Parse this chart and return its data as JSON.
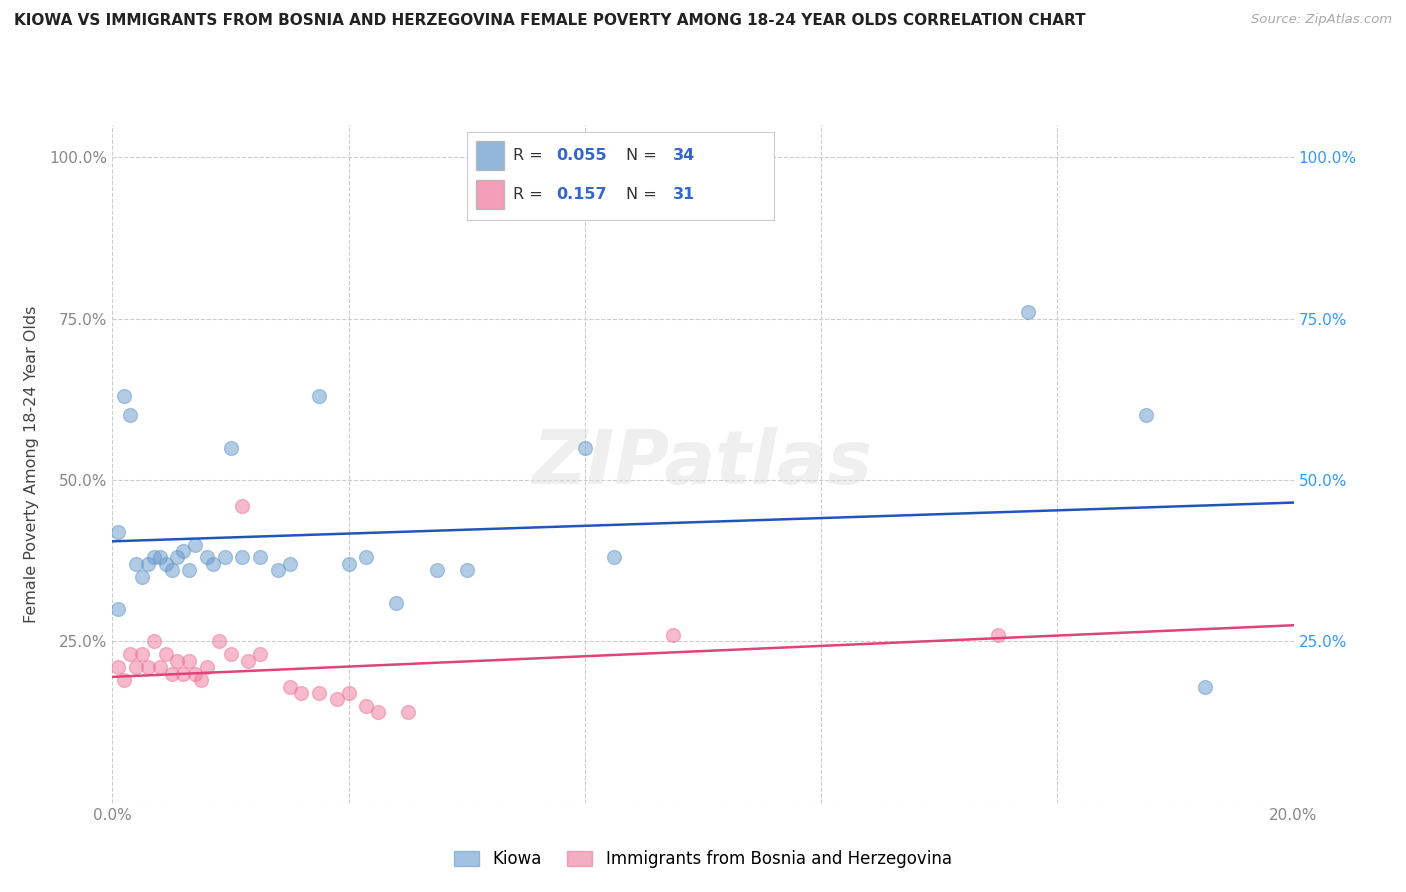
{
  "title": "KIOWA VS IMMIGRANTS FROM BOSNIA AND HERZEGOVINA FEMALE POVERTY AMONG 18-24 YEAR OLDS CORRELATION CHART",
  "source": "Source: ZipAtlas.com",
  "ylabel": "Female Poverty Among 18-24 Year Olds",
  "xlim": [
    0.0,
    0.2
  ],
  "ylim": [
    0.0,
    1.05
  ],
  "xticks": [
    0.0,
    0.04,
    0.08,
    0.12,
    0.16,
    0.2
  ],
  "xticklabels": [
    "0.0%",
    "",
    "",
    "",
    "",
    "20.0%"
  ],
  "yticks": [
    0.0,
    0.25,
    0.5,
    0.75,
    1.0
  ],
  "yticklabels_left": [
    "",
    "25.0%",
    "50.0%",
    "75.0%",
    "100.0%"
  ],
  "yticklabels_right": [
    "",
    "25.0%",
    "50.0%",
    "75.0%",
    "100.0%"
  ],
  "grid_color": "#cccccc",
  "background_color": "#ffffff",
  "blue_R": 0.055,
  "blue_N": 34,
  "pink_R": 0.157,
  "pink_N": 31,
  "blue_color": "#6699cc",
  "pink_color": "#ee7799",
  "blue_line_color": "#2255bb",
  "pink_line_color": "#dd4477",
  "legend_labels": [
    "Kiowa",
    "Immigrants from Bosnia and Herzegovina"
  ],
  "blue_x": [
    0.001,
    0.001,
    0.002,
    0.003,
    0.004,
    0.005,
    0.006,
    0.007,
    0.008,
    0.009,
    0.01,
    0.011,
    0.012,
    0.013,
    0.014,
    0.016,
    0.017,
    0.019,
    0.02,
    0.022,
    0.025,
    0.028,
    0.03,
    0.035,
    0.04,
    0.043,
    0.048,
    0.055,
    0.06,
    0.08,
    0.085,
    0.155,
    0.175,
    0.185
  ],
  "blue_y": [
    0.42,
    0.3,
    0.63,
    0.6,
    0.37,
    0.35,
    0.37,
    0.38,
    0.38,
    0.37,
    0.36,
    0.38,
    0.39,
    0.36,
    0.4,
    0.38,
    0.37,
    0.38,
    0.55,
    0.38,
    0.38,
    0.36,
    0.37,
    0.63,
    0.37,
    0.38,
    0.31,
    0.36,
    0.36,
    0.55,
    0.38,
    0.76,
    0.6,
    0.18
  ],
  "pink_x": [
    0.001,
    0.002,
    0.003,
    0.004,
    0.005,
    0.006,
    0.007,
    0.008,
    0.009,
    0.01,
    0.011,
    0.012,
    0.013,
    0.014,
    0.015,
    0.016,
    0.018,
    0.02,
    0.022,
    0.023,
    0.025,
    0.03,
    0.032,
    0.035,
    0.038,
    0.04,
    0.043,
    0.045,
    0.05,
    0.095,
    0.15
  ],
  "pink_y": [
    0.21,
    0.19,
    0.23,
    0.21,
    0.23,
    0.21,
    0.25,
    0.21,
    0.23,
    0.2,
    0.22,
    0.2,
    0.22,
    0.2,
    0.19,
    0.21,
    0.25,
    0.23,
    0.46,
    0.22,
    0.23,
    0.18,
    0.17,
    0.17,
    0.16,
    0.17,
    0.15,
    0.14,
    0.14,
    0.26,
    0.26
  ]
}
